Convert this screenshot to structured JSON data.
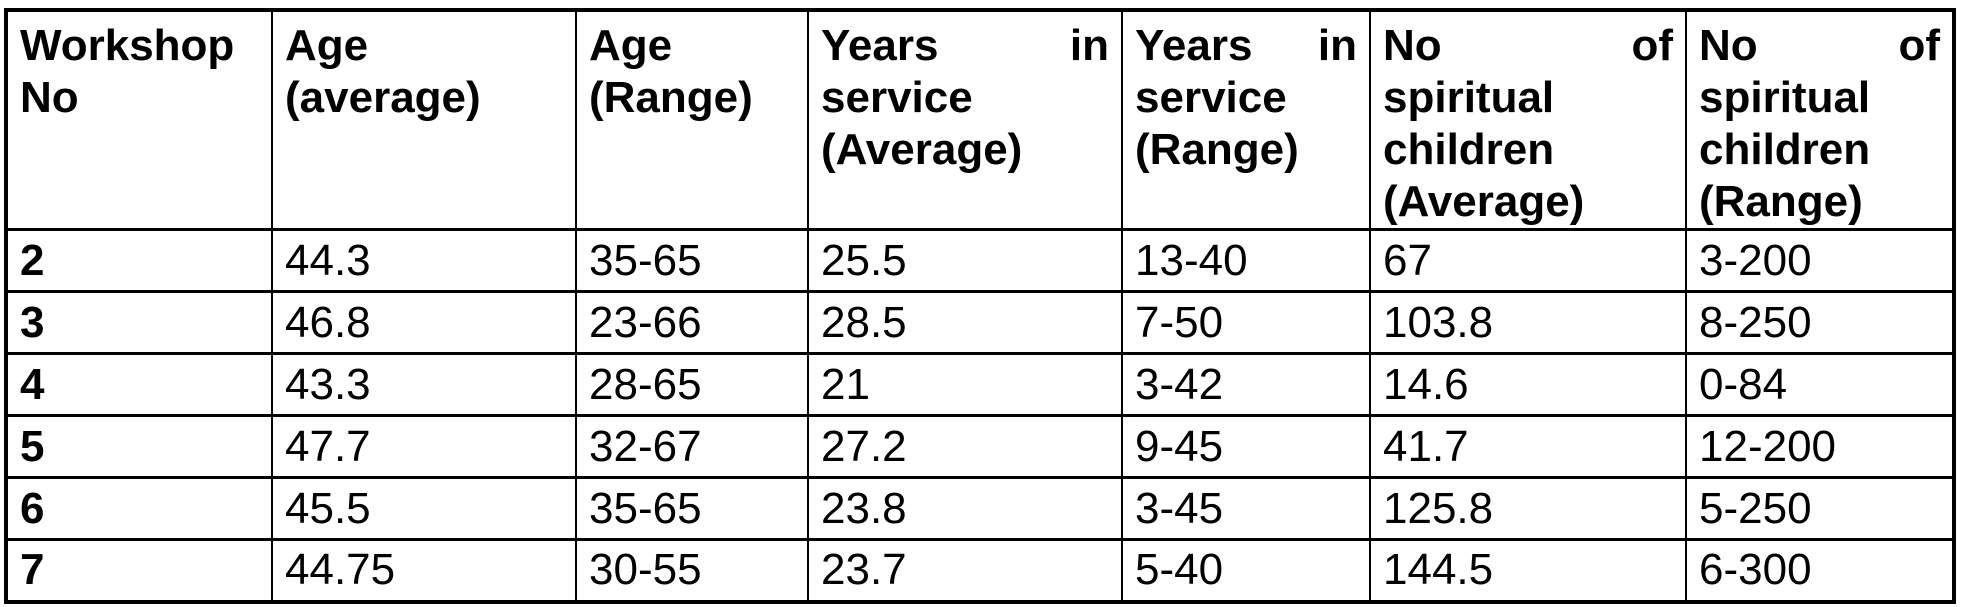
{
  "table": {
    "columns": [
      {
        "label": "Workshop No"
      },
      {
        "label": "Age (average)"
      },
      {
        "label": "Age (Range)"
      },
      {
        "label": "Years in service (Average)"
      },
      {
        "label": "Years in service (Range)"
      },
      {
        "label": "No of spiritual children (Average)"
      },
      {
        "label": "No of spiritual children (Range)"
      }
    ],
    "rows": [
      [
        "2",
        "44.3",
        "35-65",
        "25.5",
        "13-40",
        "67",
        "3-200"
      ],
      [
        "3",
        "46.8",
        "23-66",
        "28.5",
        "7-50",
        "103.8",
        "8-250"
      ],
      [
        "4",
        "43.3",
        "28-65",
        "21",
        "3-42",
        "14.6",
        "0-84"
      ],
      [
        "5",
        "47.7",
        "32-67",
        "27.2",
        "9-45",
        "41.7",
        "12-200"
      ],
      [
        "6",
        "45.5",
        "35-65",
        "23.8",
        "3-45",
        "125.8",
        "5-250"
      ],
      [
        "7",
        "44.75",
        "30-55",
        "23.7",
        "5-40",
        "144.5",
        "6-300"
      ]
    ]
  },
  "chart_data": {
    "type": "table",
    "columns": [
      "Workshop No",
      "Age (average)",
      "Age (Range)",
      "Years in service (Average)",
      "Years in service (Range)",
      "No of spiritual children (Average)",
      "No of spiritual children (Range)"
    ],
    "rows": [
      [
        "2",
        "44.3",
        "35-65",
        "25.5",
        "13-40",
        "67",
        "3-200"
      ],
      [
        "3",
        "46.8",
        "23-66",
        "28.5",
        "7-50",
        "103.8",
        "8-250"
      ],
      [
        "4",
        "43.3",
        "28-65",
        "21",
        "3-42",
        "14.6",
        "0-84"
      ],
      [
        "5",
        "47.7",
        "32-67",
        "27.2",
        "9-45",
        "41.7",
        "12-200"
      ],
      [
        "6",
        "45.5",
        "35-65",
        "23.8",
        "3-45",
        "125.8",
        "5-250"
      ],
      [
        "7",
        "44.75",
        "30-55",
        "23.7",
        "5-40",
        "144.5",
        "6-300"
      ]
    ]
  },
  "style": {
    "border_color": "#000000",
    "text_color": "#000000",
    "background_color": "#ffffff"
  }
}
